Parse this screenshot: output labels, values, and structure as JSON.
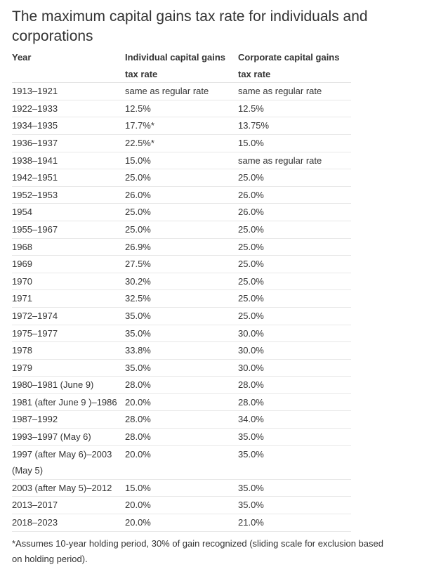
{
  "title": "The maximum capital gains tax rate for individuals and corporations",
  "table": {
    "header": [
      "Year",
      "Individual capital gains tax rate",
      "Corporate capital gains tax rate"
    ],
    "rows": [
      [
        "1913–1921",
        "same as regular rate",
        "same as regular rate"
      ],
      [
        "1922–1933",
        "12.5%",
        "12.5%"
      ],
      [
        "1934–1935",
        "17.7%*",
        "13.75%"
      ],
      [
        "1936–1937",
        "22.5%*",
        "15.0%"
      ],
      [
        "1938–1941",
        "15.0%",
        "same as regular rate"
      ],
      [
        "1942–1951",
        "25.0%",
        "25.0%"
      ],
      [
        "1952–1953",
        "26.0%",
        "26.0%"
      ],
      [
        "1954",
        "25.0%",
        "26.0%"
      ],
      [
        "1955–1967",
        "25.0%",
        "25.0%"
      ],
      [
        "1968",
        "26.9%",
        "25.0%"
      ],
      [
        "1969",
        "27.5%",
        "25.0%"
      ],
      [
        "1970",
        "30.2%",
        "25.0%"
      ],
      [
        "1971",
        "32.5%",
        "25.0%"
      ],
      [
        "1972–1974",
        "35.0%",
        "25.0%"
      ],
      [
        "1975–1977",
        "35.0%",
        "30.0%"
      ],
      [
        "1978",
        "33.8%",
        "30.0%"
      ],
      [
        "1979",
        "35.0%",
        "30.0%"
      ],
      [
        "1980–1981 (June 9)",
        "28.0%",
        "28.0%"
      ],
      [
        "1981 (after June 9 )–1986",
        "20.0%",
        "28.0%"
      ],
      [
        "1987–1992",
        "28.0%",
        "34.0%"
      ],
      [
        "1993–1997 (May 6)",
        "28.0%",
        "35.0%"
      ],
      [
        "1997 (after May 6)–2003 (May 5)",
        "20.0%",
        "35.0%"
      ],
      [
        "2003 (after May 5)–2012",
        "15.0%",
        "35.0%"
      ],
      [
        "2013–2017",
        "20.0%",
        "35.0%"
      ],
      [
        "2018–2023",
        "20.0%",
        "21.0%"
      ]
    ]
  },
  "footnote": "*Assumes 10-year holding period, 30% of gain recognized (sliding scale for exclusion based on holding period)."
}
